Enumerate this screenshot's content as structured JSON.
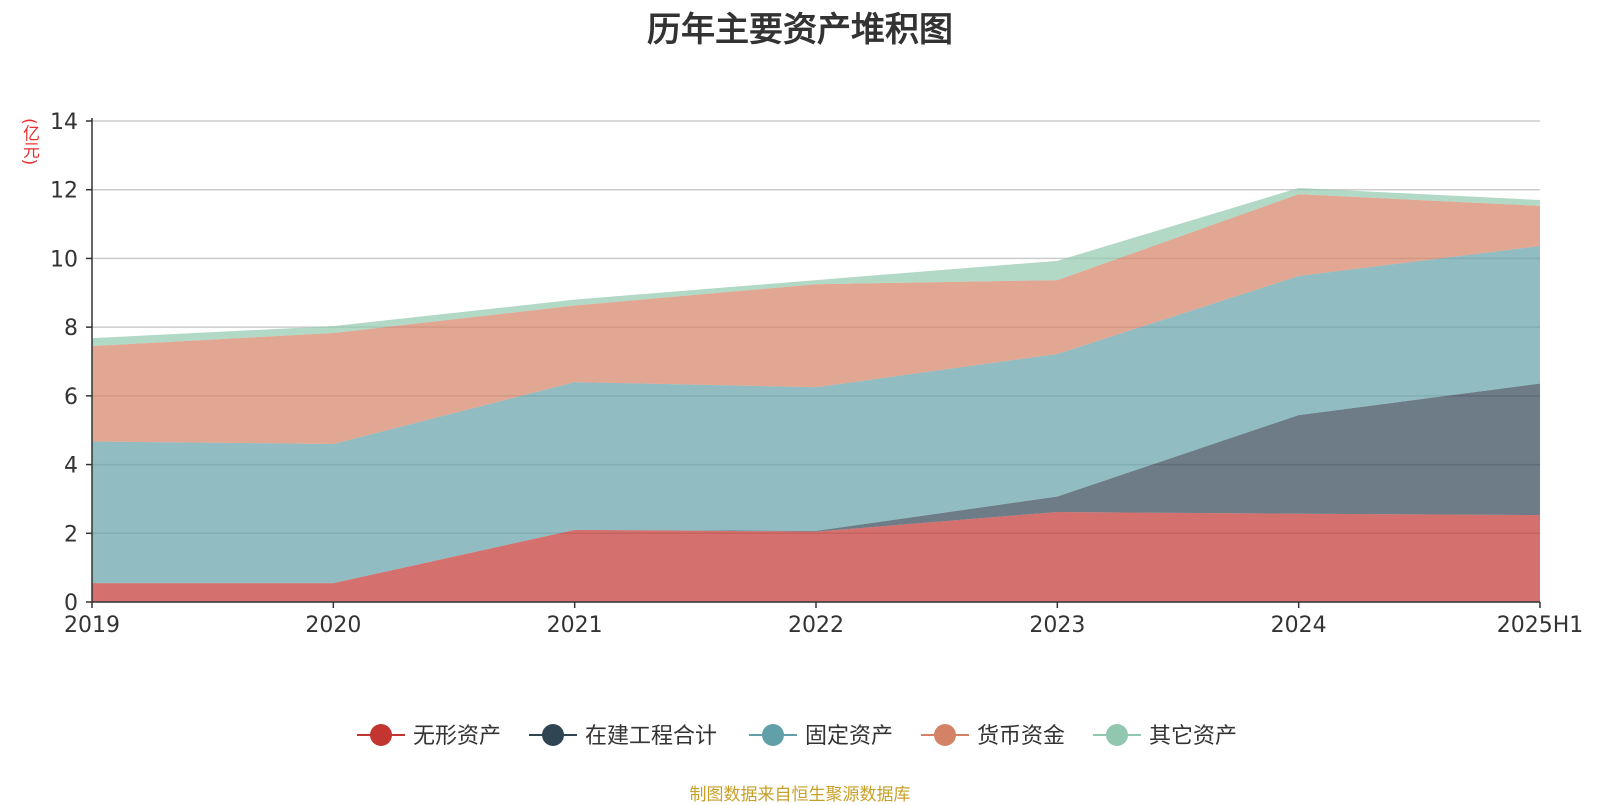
{
  "chart_data": {
    "type": "area",
    "stacked": true,
    "title": "历年主要资产堆积图",
    "ylabel": "(亿元)",
    "categories": [
      "2019",
      "2020",
      "2021",
      "2022",
      "2023",
      "2024",
      "2025H1"
    ],
    "ylim": [
      0,
      14
    ],
    "yticks": [
      0,
      2,
      4,
      6,
      8,
      10,
      12,
      14
    ],
    "grid": true,
    "legend_position": "bottom-center",
    "series": [
      {
        "name": "无形资产",
        "color": "#c23531",
        "values": [
          0.55,
          0.55,
          2.1,
          2.05,
          2.62,
          2.57,
          2.53
        ]
      },
      {
        "name": "在建工程合计",
        "color": "#2f4554",
        "values": [
          0.0,
          0.0,
          0.0,
          0.02,
          0.45,
          2.87,
          3.83
        ]
      },
      {
        "name": "固定资产",
        "color": "#61a0a8",
        "values": [
          4.12,
          4.05,
          4.3,
          4.18,
          4.15,
          4.05,
          4.0
        ]
      },
      {
        "name": "货币资金",
        "color": "#d48265",
        "values": [
          2.78,
          3.23,
          2.23,
          3.0,
          2.15,
          2.38,
          1.17
        ]
      },
      {
        "name": "其它资产",
        "color": "#91c7ae",
        "values": [
          0.23,
          0.2,
          0.17,
          0.12,
          0.56,
          0.18,
          0.17
        ]
      }
    ]
  },
  "source_note": "制图数据来自恒生聚源数据库"
}
